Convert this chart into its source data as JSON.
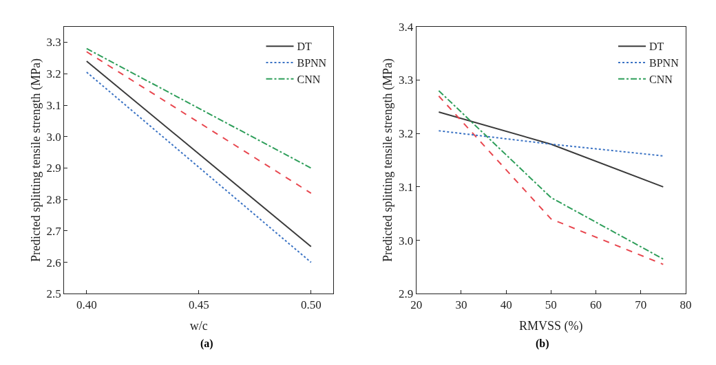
{
  "chart_data": [
    {
      "type": "line",
      "xlabel": "w/c",
      "ylabel": "Predicted splitting tensile strength (MPa)",
      "annotations": [
        "(a)"
      ],
      "x": [
        0.4,
        0.5
      ],
      "xlim": [
        0.39,
        0.51
      ],
      "xticks": [
        {
          "value": 0.4,
          "label": "0.40"
        },
        {
          "value": 0.45,
          "label": "0.45"
        },
        {
          "value": 0.5,
          "label": "0.50"
        }
      ],
      "ylim": [
        2.5,
        3.35
      ],
      "yticks": [
        2.5,
        2.6,
        2.7,
        2.8,
        2.9,
        {
          "value": 3.0,
          "label": "3.0"
        },
        3.1,
        3.2,
        3.3
      ],
      "legend": "top right",
      "series": [
        {
          "name": "DT",
          "color": "#3a3a3a",
          "line_style": "solid",
          "values": [
            3.24,
            2.65
          ]
        },
        {
          "color": "#e8474f",
          "line_style": "dashed",
          "values": [
            3.27,
            2.82
          ]
        },
        {
          "name": "BPNN",
          "color": "#3b73c4",
          "line_style": "dotted",
          "values": [
            3.205,
            2.6
          ]
        },
        {
          "name": "CNN",
          "color": "#2e9e5a",
          "line_style": "dashdot",
          "values": [
            3.28,
            2.9
          ]
        }
      ]
    },
    {
      "type": "line",
      "xlabel": "RMVSS (%)",
      "ylabel": "Predicted splitting tensile strength (MPa)",
      "annotations": [
        "(b)"
      ],
      "x": [
        25,
        50,
        75
      ],
      "xlim": [
        20,
        80
      ],
      "xticks": [
        20,
        30,
        40,
        50,
        60,
        70,
        80
      ],
      "ylim": [
        2.9,
        3.4
      ],
      "yticks": [
        2.9,
        {
          "value": 3.0,
          "label": "3.0"
        },
        3.1,
        3.2,
        3.3,
        3.4
      ],
      "legend": "top right",
      "series": [
        {
          "name": "DT",
          "color": "#3a3a3a",
          "line_style": "solid",
          "values": [
            3.24,
            3.18,
            3.1
          ]
        },
        {
          "color": "#e8474f",
          "line_style": "dashed",
          "values": [
            3.27,
            3.04,
            2.955
          ]
        },
        {
          "name": "BPNN",
          "color": "#3b73c4",
          "line_style": "dotted",
          "values": [
            3.205,
            3.18,
            3.158
          ]
        },
        {
          "name": "CNN",
          "color": "#2e9e5a",
          "line_style": "dashdot",
          "values": [
            3.28,
            3.08,
            2.965
          ]
        }
      ]
    }
  ]
}
